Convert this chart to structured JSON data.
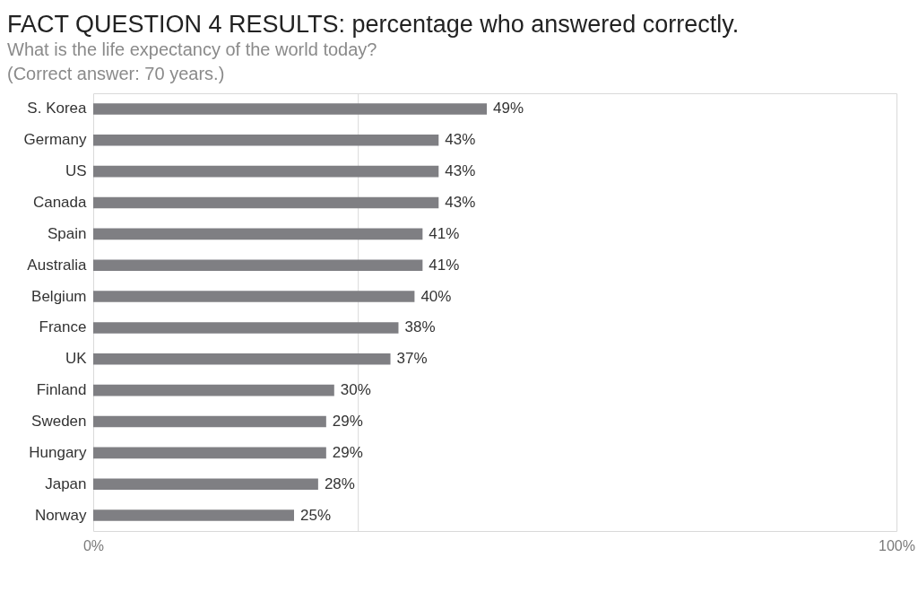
{
  "chart_data": {
    "type": "bar",
    "orientation": "horizontal",
    "title": "FACT QUESTION 4 RESULTS: percentage who answered correctly.",
    "subtitle": "What is the life expectancy of the world today?\n(Correct answer: 70 years.)",
    "categories": [
      "S. Korea",
      "Germany",
      "US",
      "Canada",
      "Spain",
      "Australia",
      "Belgium",
      "France",
      "UK",
      "Finland",
      "Sweden",
      "Hungary",
      "Japan",
      "Norway"
    ],
    "values": [
      49,
      43,
      43,
      43,
      41,
      41,
      40,
      38,
      37,
      30,
      29,
      29,
      28,
      25
    ],
    "value_labels": [
      "49%",
      "43%",
      "43%",
      "43%",
      "41%",
      "41%",
      "40%",
      "38%",
      "37%",
      "30%",
      "29%",
      "29%",
      "28%",
      "25%"
    ],
    "color": "#7f7f83",
    "xlim": [
      0,
      100
    ],
    "xticks": [
      {
        "value": 0,
        "label": "0%"
      },
      {
        "value": 100,
        "label": "100%"
      }
    ],
    "ref_lines": [
      {
        "axis": "x",
        "value": 33,
        "color": "#d9d9d9"
      }
    ]
  }
}
